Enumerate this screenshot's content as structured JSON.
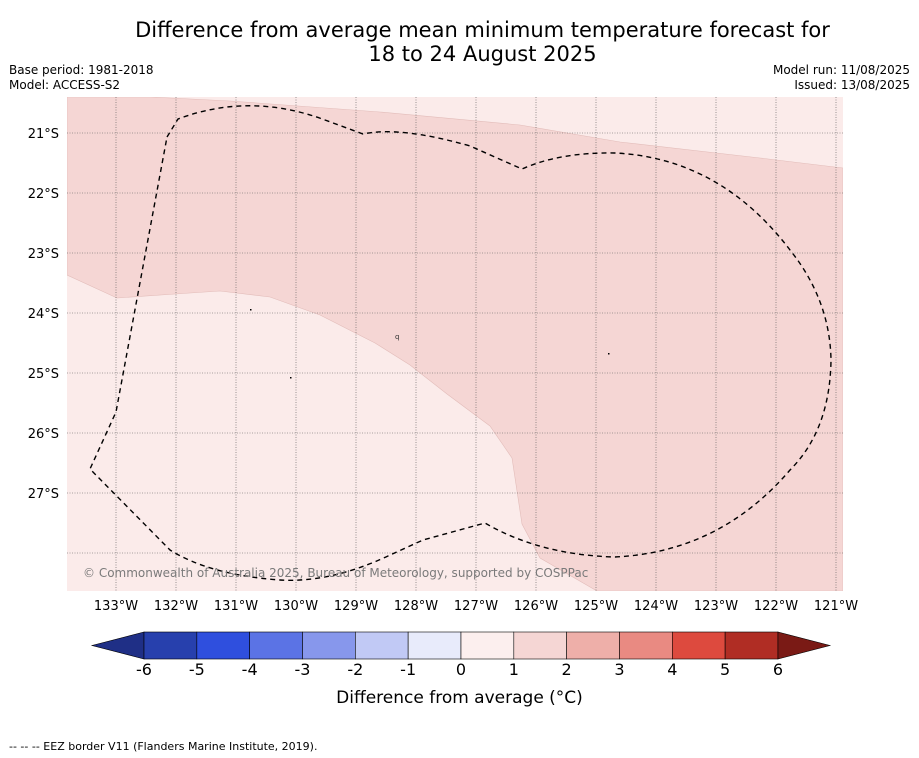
{
  "header": {
    "title_line1": "Difference from average mean minimum temperature forecast for",
    "title_line2": "18 to 24 August 2025",
    "base_period": "Base period: 1981-2018",
    "model": "Model: ACCESS-S2",
    "model_run": "Model run: 11/08/2025",
    "issued": "Issued: 13/08/2025"
  },
  "map": {
    "copyright": "© Commonwealth of Australia 2025, Bureau of Meteorology, supported by COSPPac",
    "lon_labels": [
      "133°W",
      "132°W",
      "131°W",
      "130°W",
      "129°W",
      "128°W",
      "127°W",
      "126°W",
      "125°W",
      "124°W",
      "123°W",
      "122°W",
      "121°W"
    ],
    "lat_labels": [
      "21°S",
      "22°S",
      "23°S",
      "24°S",
      "25°S",
      "26°S",
      "27°S"
    ],
    "colors": {
      "anomaly_0_1": "#fbebea",
      "anomaly_1_2": "#f5d6d4",
      "eez_border": "#000000"
    }
  },
  "colorbar": {
    "label": "Difference from average (°C)",
    "ticks": [
      "-6",
      "-5",
      "-4",
      "-3",
      "-2",
      "-1",
      "0",
      "1",
      "2",
      "3",
      "4",
      "5",
      "6"
    ],
    "colors": [
      "#1f2f86",
      "#2740ad",
      "#2f4fde",
      "#5b73e5",
      "#8797ec",
      "#c1c9f5",
      "#e8ebfb",
      "#fcefee",
      "#f5d6d4",
      "#eeafa9",
      "#e98a82",
      "#dd4a3e",
      "#b02d24",
      "#7a1a15"
    ]
  },
  "footer": {
    "legend": "--  --  -- EEZ border V11 (Flanders Marine Institute, 2019)."
  }
}
